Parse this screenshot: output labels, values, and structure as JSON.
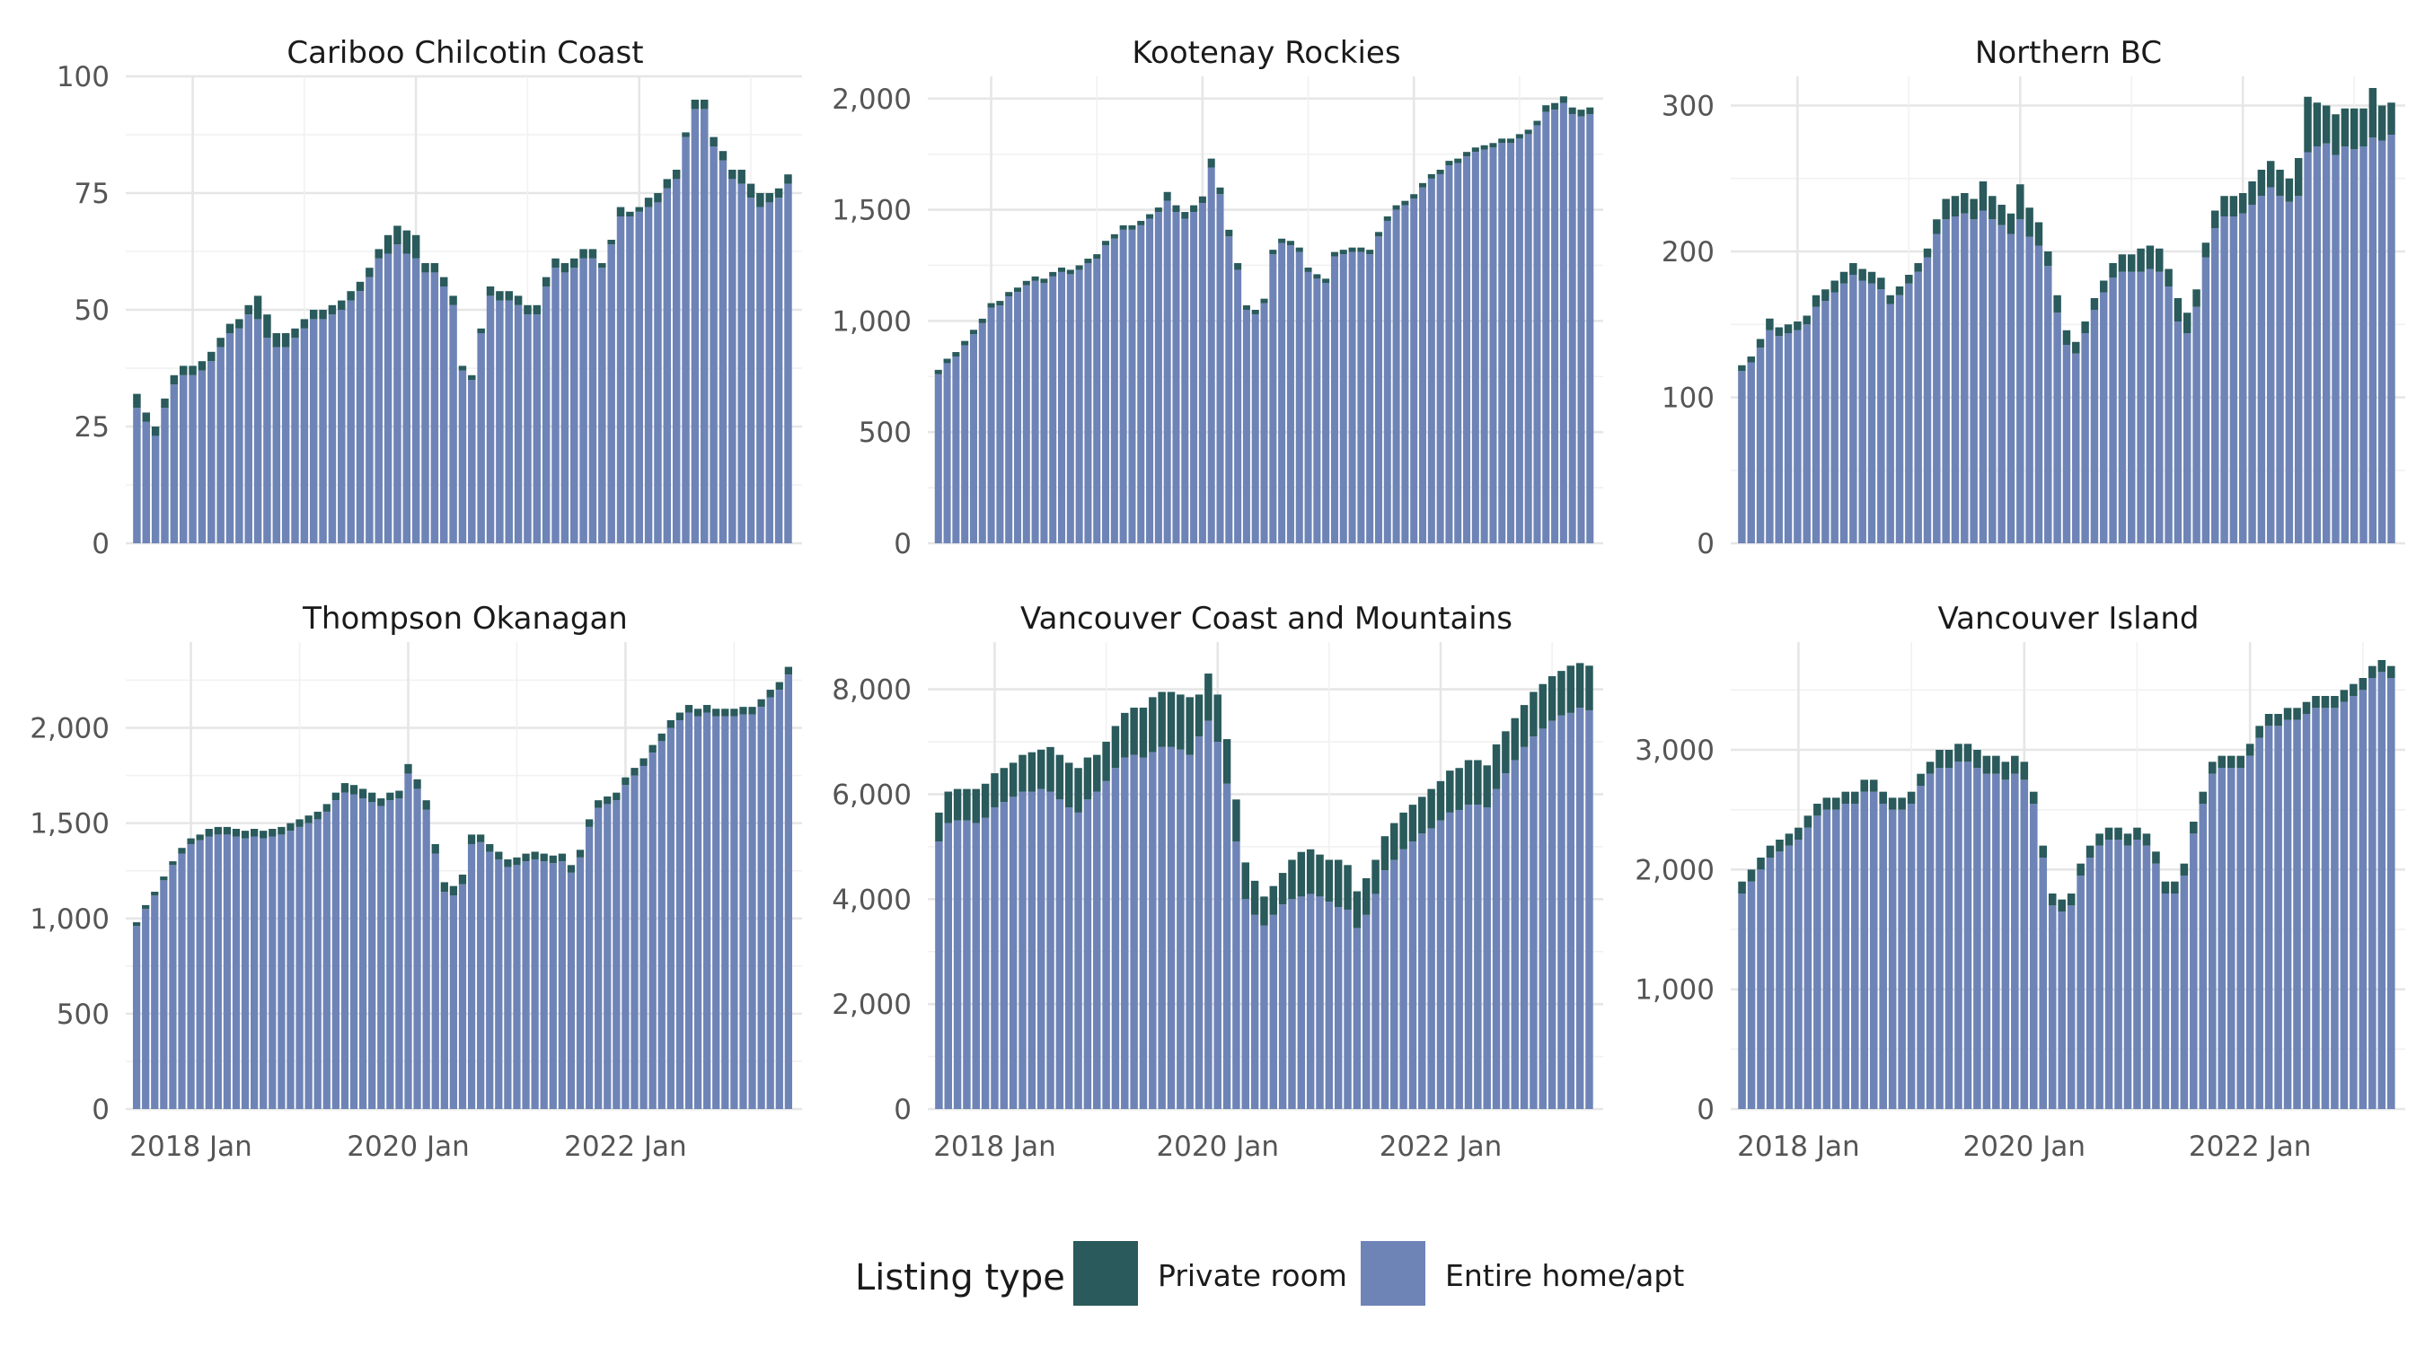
{
  "colors": {
    "private_room": "#2a5a5b",
    "entire_home": "#6e84b7",
    "grid_major": "#e6e6e6",
    "grid_minor": "#f1f1f1"
  },
  "legend": {
    "title": "Listing type",
    "items": [
      {
        "label": "Private room",
        "color": "#2a5a5b"
      },
      {
        "label": "Entire home/apt",
        "color": "#6e84b7"
      }
    ]
  },
  "chart_data": [
    {
      "type": "bar",
      "stacked": true,
      "title": "Cariboo Chilcotin Coast",
      "x_start": "2017-07",
      "x_end": "2023-07",
      "x_ticks": [
        "2018 Jan",
        "2020 Jan",
        "2022 Jan"
      ],
      "y_ticks": [
        "0",
        "25",
        "50",
        "75",
        "100"
      ],
      "ylim": [
        0,
        100
      ],
      "show_x_labels": false,
      "series": [
        {
          "name": "Entire home/apt",
          "values": [
            29,
            26,
            23,
            29,
            34,
            36,
            36,
            37,
            39,
            42,
            45,
            46,
            49,
            48,
            44,
            42,
            42,
            44,
            46,
            48,
            48,
            49,
            50,
            52,
            54,
            57,
            61,
            62,
            64,
            62,
            61,
            58,
            58,
            55,
            51,
            37,
            35,
            45,
            53,
            52,
            52,
            51,
            49,
            49,
            55,
            59,
            58,
            59,
            61,
            61,
            59,
            64,
            70,
            70,
            71,
            72,
            73,
            76,
            78,
            87,
            93,
            93,
            85,
            82,
            78,
            77,
            74,
            72,
            73,
            74,
            77
          ]
        },
        {
          "name": "Private room",
          "values": [
            3,
            2,
            2,
            2,
            2,
            2,
            2,
            2,
            2,
            2,
            2,
            2,
            2,
            5,
            5,
            3,
            3,
            2,
            2,
            2,
            2,
            2,
            2,
            2,
            2,
            2,
            2,
            4,
            4,
            5,
            5,
            2,
            2,
            2,
            2,
            1,
            1,
            1,
            2,
            2,
            2,
            2,
            2,
            2,
            2,
            2,
            2,
            2,
            2,
            2,
            1,
            1,
            2,
            1,
            1,
            2,
            2,
            2,
            2,
            1,
            2,
            2,
            2,
            2,
            2,
            3,
            3,
            3,
            2,
            2,
            2
          ]
        }
      ]
    },
    {
      "type": "bar",
      "stacked": true,
      "title": "Kootenay Rockies",
      "x_start": "2017-07",
      "x_end": "2023-07",
      "x_ticks": [
        "2018 Jan",
        "2020 Jan",
        "2022 Jan"
      ],
      "y_ticks": [
        "0",
        "500",
        "1,000",
        "1,500",
        "2,000"
      ],
      "ylim": [
        0,
        2100
      ],
      "show_x_labels": false,
      "series": [
        {
          "name": "Entire home/apt",
          "values": [
            760,
            810,
            840,
            890,
            940,
            990,
            1060,
            1070,
            1110,
            1130,
            1160,
            1180,
            1170,
            1200,
            1220,
            1210,
            1230,
            1260,
            1280,
            1340,
            1370,
            1410,
            1410,
            1430,
            1460,
            1490,
            1540,
            1490,
            1460,
            1490,
            1530,
            1690,
            1570,
            1380,
            1230,
            1050,
            1030,
            1080,
            1300,
            1350,
            1340,
            1310,
            1220,
            1190,
            1170,
            1290,
            1300,
            1310,
            1310,
            1300,
            1380,
            1450,
            1500,
            1520,
            1550,
            1600,
            1640,
            1660,
            1700,
            1710,
            1740,
            1760,
            1770,
            1780,
            1800,
            1800,
            1820,
            1840,
            1880,
            1940,
            1950,
            1980,
            1930,
            1920,
            1930
          ]
        },
        {
          "name": "Private room",
          "values": [
            20,
            20,
            20,
            20,
            20,
            20,
            20,
            20,
            20,
            20,
            20,
            20,
            20,
            20,
            20,
            20,
            20,
            20,
            20,
            20,
            20,
            20,
            20,
            20,
            20,
            20,
            40,
            30,
            30,
            30,
            30,
            40,
            30,
            30,
            30,
            20,
            20,
            20,
            20,
            20,
            20,
            20,
            20,
            20,
            20,
            20,
            20,
            20,
            20,
            20,
            20,
            20,
            20,
            20,
            20,
            20,
            20,
            20,
            20,
            20,
            20,
            20,
            20,
            20,
            20,
            20,
            20,
            20,
            20,
            30,
            30,
            30,
            30,
            30,
            30
          ]
        }
      ]
    },
    {
      "type": "bar",
      "stacked": true,
      "title": "Northern BC",
      "x_start": "2017-07",
      "x_end": "2023-07",
      "x_ticks": [
        "2018 Jan",
        "2020 Jan",
        "2022 Jan"
      ],
      "y_ticks": [
        "0",
        "100",
        "200",
        "300"
      ],
      "ylim": [
        0,
        320
      ],
      "show_x_labels": false,
      "series": [
        {
          "name": "Entire home/apt",
          "values": [
            118,
            124,
            134,
            146,
            142,
            144,
            146,
            150,
            162,
            166,
            172,
            178,
            184,
            180,
            178,
            174,
            164,
            170,
            178,
            186,
            196,
            212,
            222,
            224,
            226,
            222,
            228,
            222,
            218,
            212,
            222,
            210,
            204,
            190,
            158,
            136,
            130,
            144,
            160,
            172,
            182,
            186,
            186,
            186,
            188,
            186,
            176,
            152,
            144,
            162,
            196,
            216,
            224,
            224,
            226,
            232,
            238,
            244,
            238,
            234,
            238,
            268,
            272,
            274,
            266,
            272,
            270,
            272,
            278,
            276,
            280
          ]
        },
        {
          "name": "Private room",
          "values": [
            4,
            4,
            6,
            8,
            6,
            6,
            6,
            6,
            8,
            8,
            8,
            8,
            8,
            8,
            8,
            8,
            6,
            6,
            6,
            6,
            6,
            10,
            14,
            14,
            14,
            14,
            20,
            16,
            14,
            14,
            24,
            20,
            16,
            10,
            12,
            10,
            8,
            8,
            8,
            8,
            10,
            12,
            12,
            16,
            16,
            16,
            12,
            16,
            14,
            12,
            10,
            12,
            14,
            14,
            14,
            16,
            18,
            18,
            18,
            16,
            26,
            38,
            30,
            26,
            28,
            26,
            28,
            26,
            34,
            24,
            22
          ]
        }
      ]
    },
    {
      "type": "bar",
      "stacked": true,
      "title": "Thompson Okanagan",
      "x_start": "2017-07",
      "x_end": "2023-07",
      "x_ticks": [
        "2018 Jan",
        "2020 Jan",
        "2022 Jan"
      ],
      "y_ticks": [
        "0",
        "500",
        "1,000",
        "1,500",
        "2,000"
      ],
      "ylim": [
        0,
        2450
      ],
      "show_x_labels": true,
      "series": [
        {
          "name": "Entire home/apt",
          "values": [
            960,
            1050,
            1120,
            1200,
            1280,
            1340,
            1390,
            1410,
            1430,
            1440,
            1440,
            1430,
            1420,
            1430,
            1420,
            1430,
            1440,
            1460,
            1480,
            1500,
            1520,
            1560,
            1620,
            1660,
            1650,
            1630,
            1610,
            1590,
            1620,
            1630,
            1760,
            1680,
            1570,
            1340,
            1140,
            1120,
            1180,
            1390,
            1400,
            1350,
            1310,
            1270,
            1280,
            1300,
            1310,
            1300,
            1290,
            1300,
            1240,
            1320,
            1480,
            1580,
            1600,
            1620,
            1700,
            1750,
            1800,
            1870,
            1930,
            2000,
            2040,
            2080,
            2060,
            2080,
            2060,
            2060,
            2060,
            2070,
            2070,
            2110,
            2160,
            2200,
            2280
          ]
        },
        {
          "name": "Private room",
          "values": [
            20,
            20,
            20,
            20,
            20,
            30,
            30,
            30,
            40,
            40,
            40,
            40,
            40,
            40,
            40,
            40,
            40,
            40,
            40,
            40,
            40,
            40,
            40,
            50,
            50,
            50,
            50,
            40,
            40,
            40,
            50,
            50,
            50,
            50,
            50,
            50,
            50,
            50,
            40,
            40,
            40,
            40,
            40,
            40,
            40,
            40,
            40,
            40,
            40,
            40,
            40,
            40,
            40,
            40,
            40,
            40,
            40,
            40,
            40,
            40,
            40,
            40,
            40,
            40,
            40,
            40,
            40,
            40,
            40,
            40,
            40,
            40,
            40
          ]
        }
      ]
    },
    {
      "type": "bar",
      "stacked": true,
      "title": "Vancouver Coast and Mountains",
      "x_start": "2017-07",
      "x_end": "2023-07",
      "x_ticks": [
        "2018 Jan",
        "2020 Jan",
        "2022 Jan"
      ],
      "y_ticks": [
        "0",
        "2,000",
        "4,000",
        "6,000",
        "8,000"
      ],
      "ylim": [
        0,
        8900
      ],
      "show_x_labels": true,
      "series": [
        {
          "name": "Entire home/apt",
          "values": [
            5100,
            5450,
            5500,
            5500,
            5450,
            5550,
            5750,
            5850,
            5950,
            6050,
            6050,
            6100,
            6050,
            5900,
            5750,
            5650,
            5900,
            6050,
            6250,
            6500,
            6700,
            6750,
            6700,
            6800,
            6900,
            6900,
            6850,
            6750,
            7100,
            7400,
            7000,
            6200,
            5100,
            4000,
            3700,
            3500,
            3700,
            3900,
            4000,
            4050,
            4100,
            4050,
            3950,
            3850,
            3800,
            3450,
            3700,
            4100,
            4550,
            4750,
            4950,
            5100,
            5250,
            5350,
            5500,
            5650,
            5700,
            5800,
            5800,
            5750,
            6100,
            6400,
            6650,
            6900,
            7100,
            7250,
            7400,
            7500,
            7550,
            7650,
            7600
          ]
        },
        {
          "name": "Private room",
          "values": [
            550,
            600,
            600,
            600,
            650,
            650,
            650,
            650,
            650,
            700,
            750,
            750,
            850,
            850,
            850,
            850,
            800,
            700,
            750,
            800,
            850,
            900,
            950,
            1050,
            1050,
            1050,
            1050,
            1100,
            800,
            900,
            900,
            850,
            800,
            700,
            650,
            550,
            550,
            600,
            750,
            850,
            850,
            800,
            800,
            900,
            850,
            700,
            700,
            650,
            650,
            700,
            700,
            700,
            700,
            750,
            750,
            800,
            800,
            850,
            850,
            800,
            850,
            800,
            800,
            800,
            850,
            850,
            850,
            850,
            900,
            850,
            850
          ]
        }
      ]
    },
    {
      "type": "bar",
      "stacked": true,
      "title": "Vancouver Island",
      "x_start": "2017-07",
      "x_end": "2023-07",
      "x_ticks": [
        "2018 Jan",
        "2020 Jan",
        "2022 Jan"
      ],
      "y_ticks": [
        "0",
        "1,000",
        "2,000",
        "3,000"
      ],
      "ylim": [
        0,
        3900
      ],
      "show_x_labels": true,
      "series": [
        {
          "name": "Entire home/apt",
          "values": [
            1800,
            1900,
            2000,
            2100,
            2150,
            2200,
            2250,
            2350,
            2450,
            2500,
            2500,
            2550,
            2550,
            2650,
            2650,
            2550,
            2500,
            2500,
            2550,
            2700,
            2800,
            2850,
            2850,
            2900,
            2900,
            2850,
            2800,
            2800,
            2750,
            2800,
            2750,
            2550,
            2100,
            1700,
            1650,
            1700,
            1950,
            2100,
            2200,
            2250,
            2250,
            2200,
            2250,
            2200,
            2050,
            1800,
            1800,
            1950,
            2300,
            2550,
            2800,
            2850,
            2850,
            2850,
            2950,
            3100,
            3200,
            3200,
            3250,
            3250,
            3300,
            3350,
            3350,
            3350,
            3400,
            3450,
            3500,
            3600,
            3650,
            3600
          ]
        },
        {
          "name": "Private room",
          "values": [
            100,
            100,
            100,
            100,
            100,
            100,
            100,
            100,
            100,
            100,
            100,
            100,
            100,
            100,
            100,
            100,
            100,
            100,
            100,
            100,
            100,
            150,
            150,
            150,
            150,
            150,
            150,
            150,
            150,
            150,
            150,
            100,
            100,
            100,
            100,
            100,
            100,
            100,
            100,
            100,
            100,
            100,
            100,
            100,
            100,
            100,
            100,
            100,
            100,
            100,
            100,
            100,
            100,
            100,
            100,
            100,
            100,
            100,
            100,
            100,
            100,
            100,
            100,
            100,
            100,
            100,
            100,
            100,
            100,
            100
          ]
        }
      ]
    }
  ]
}
